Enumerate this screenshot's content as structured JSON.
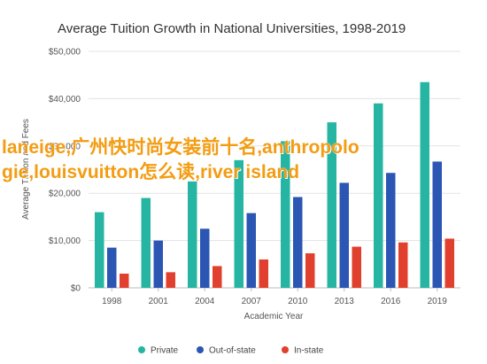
{
  "chart_data": {
    "type": "bar",
    "title": "Average Tuition Growth in National Universities, 1998-2019",
    "xlabel": "Academic Year",
    "ylabel": "Average Tuition and Fees",
    "ylim": [
      0,
      50000
    ],
    "yticks": [
      "$0",
      "$10,000",
      "$20,000",
      "$30,000",
      "$40,000",
      "$50,000"
    ],
    "ytick_values": [
      0,
      10000,
      20000,
      30000,
      40000,
      50000
    ],
    "categories": [
      "1998",
      "2001",
      "2004",
      "2007",
      "2010",
      "2013",
      "2016",
      "2019"
    ],
    "grid": true,
    "legend_position": "bottom",
    "series": [
      {
        "name": "Private",
        "color": "#26b5a2",
        "values": [
          16000,
          19000,
          22500,
          27000,
          31000,
          35000,
          39000,
          43500
        ]
      },
      {
        "name": "Out-of-state",
        "color": "#2b56b3",
        "values": [
          8500,
          10000,
          12500,
          15800,
          19200,
          22200,
          24300,
          26700
        ]
      },
      {
        "name": "In-state",
        "color": "#e0402d",
        "values": [
          3000,
          3300,
          4600,
          6000,
          7300,
          8700,
          9600,
          10400
        ]
      }
    ]
  },
  "overlay_text": "laneige,广州快时尚女装前十名,anthropologie,louisvuitton怎么读,river island"
}
